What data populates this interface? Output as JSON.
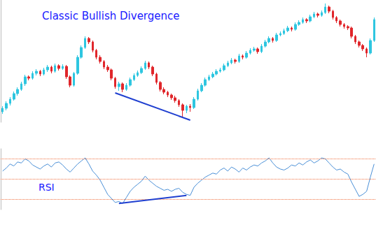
{
  "chart_data": [
    {
      "type": "candlestick",
      "title": "Classic Bullish Divergence",
      "open": [
        40,
        45,
        52,
        58,
        66,
        72,
        80,
        90,
        88,
        95,
        98,
        94,
        100,
        104,
        98,
        106,
        102,
        105,
        90,
        78,
        95,
        118,
        132,
        145,
        140,
        128,
        118,
        112,
        104,
        100,
        88,
        76,
        80,
        72,
        78,
        86,
        92,
        96,
        102,
        110,
        104,
        94,
        82,
        72,
        68,
        64,
        60,
        56,
        50,
        42,
        48,
        46,
        58,
        70,
        78,
        86,
        90,
        94,
        98,
        100,
        106,
        110,
        114,
        112,
        120,
        118,
        124,
        128,
        130,
        126,
        134,
        140,
        145,
        142,
        150,
        152,
        156,
        160,
        158,
        165,
        168,
        172,
        170,
        176,
        180,
        178,
        182,
        190,
        184,
        175,
        170,
        165,
        162,
        160,
        148,
        140,
        135,
        130,
        124,
        142
      ],
      "close": [
        45,
        52,
        58,
        66,
        72,
        80,
        90,
        88,
        95,
        98,
        94,
        100,
        104,
        98,
        106,
        102,
        105,
        90,
        78,
        95,
        118,
        132,
        145,
        140,
        128,
        118,
        112,
        104,
        100,
        88,
        76,
        80,
        72,
        78,
        86,
        92,
        96,
        102,
        110,
        104,
        94,
        82,
        72,
        68,
        64,
        60,
        56,
        50,
        42,
        48,
        46,
        58,
        70,
        78,
        86,
        90,
        94,
        98,
        100,
        106,
        110,
        114,
        112,
        120,
        118,
        124,
        128,
        130,
        126,
        134,
        140,
        145,
        142,
        150,
        152,
        156,
        160,
        158,
        165,
        168,
        172,
        170,
        176,
        180,
        178,
        182,
        190,
        184,
        175,
        170,
        165,
        162,
        160,
        148,
        140,
        135,
        130,
        124,
        142,
        172
      ],
      "low": [
        37,
        42,
        49,
        56,
        63,
        70,
        77,
        85,
        86,
        92,
        91,
        92,
        97,
        95,
        96,
        99,
        100,
        87,
        75,
        76,
        93,
        116,
        130,
        137,
        125,
        115,
        109,
        101,
        97,
        85,
        73,
        70,
        68,
        70,
        76,
        84,
        90,
        94,
        100,
        101,
        91,
        79,
        69,
        65,
        61,
        57,
        53,
        47,
        33,
        38,
        40,
        44,
        56,
        68,
        76,
        84,
        88,
        92,
        96,
        98,
        104,
        108,
        109,
        110,
        115,
        116,
        122,
        126,
        123,
        124,
        132,
        138,
        139,
        140,
        148,
        150,
        154,
        155,
        156,
        163,
        166,
        167,
        168,
        174,
        175,
        176,
        180,
        181,
        172,
        167,
        162,
        159,
        157,
        145,
        137,
        132,
        127,
        118,
        122,
        140
      ],
      "high": [
        48,
        55,
        61,
        69,
        75,
        83,
        93,
        92,
        98,
        101,
        100,
        103,
        107,
        106,
        109,
        108,
        108,
        107,
        92,
        97,
        121,
        135,
        148,
        147,
        142,
        130,
        121,
        114,
        107,
        102,
        90,
        83,
        82,
        81,
        89,
        95,
        99,
        105,
        113,
        112,
        106,
        96,
        84,
        75,
        70,
        66,
        63,
        58,
        52,
        50,
        51,
        61,
        73,
        81,
        89,
        93,
        97,
        101,
        103,
        109,
        113,
        117,
        116,
        123,
        122,
        127,
        131,
        133,
        132,
        137,
        143,
        148,
        147,
        153,
        155,
        159,
        163,
        162,
        168,
        171,
        175,
        174,
        179,
        183,
        182,
        185,
        195,
        192,
        186,
        177,
        172,
        167,
        164,
        162,
        150,
        142,
        137,
        132,
        145,
        175
      ],
      "ylim": [
        25,
        200
      ],
      "grid": false,
      "tick_labels": false,
      "divergence_line": {
        "x": [
          30,
          50
        ],
        "y": [
          67,
          28
        ]
      }
    },
    {
      "type": "line",
      "title": "RSI",
      "values": [
        58,
        61,
        65,
        63,
        67,
        66,
        70,
        68,
        64,
        62,
        60,
        63,
        65,
        62,
        66,
        67,
        64,
        60,
        57,
        61,
        65,
        68,
        71,
        65,
        58,
        54,
        49,
        42,
        35,
        31,
        27,
        28,
        26,
        32,
        38,
        42,
        45,
        48,
        53,
        49,
        46,
        43,
        41,
        39,
        40,
        38,
        40,
        41,
        37,
        35,
        34,
        42,
        46,
        49,
        52,
        54,
        56,
        55,
        59,
        61,
        58,
        62,
        60,
        57,
        61,
        59,
        62,
        64,
        63,
        66,
        68,
        71,
        66,
        62,
        60,
        59,
        61,
        64,
        63,
        66,
        64,
        67,
        69,
        66,
        68,
        71,
        70,
        66,
        62,
        59,
        60,
        57,
        55,
        47,
        40,
        33,
        35,
        38,
        52,
        65
      ],
      "ylim": [
        20,
        80
      ],
      "yticks": [
        30,
        50,
        70
      ],
      "grid": true,
      "tick_labels": false,
      "line_style": "solid",
      "divergence_line": {
        "x": [
          31,
          49
        ],
        "y": [
          26,
          34
        ]
      }
    }
  ]
}
